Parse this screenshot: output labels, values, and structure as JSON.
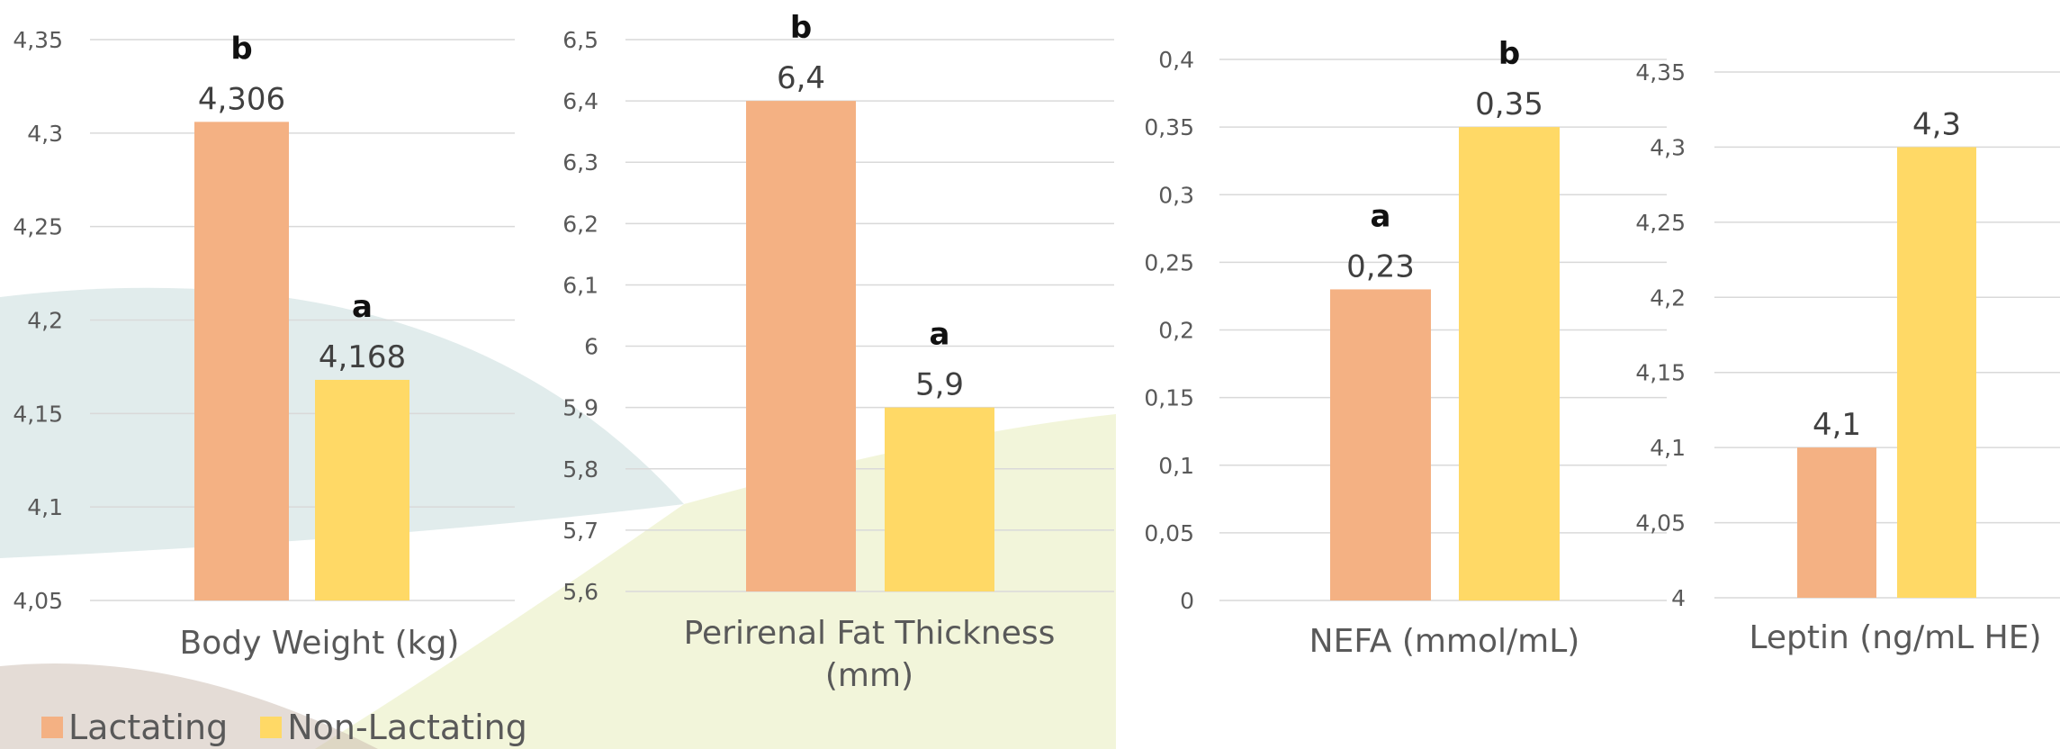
{
  "colors": {
    "lactating": "#F4B183",
    "non_lactating": "#FFD966"
  },
  "legend": {
    "items": [
      {
        "label": "Lactating"
      },
      {
        "label": "Non-Lactating"
      }
    ]
  },
  "chart_data": [
    {
      "type": "bar",
      "xlabel": "Body Weight (kg)",
      "categories": [
        "Body Weight (kg)"
      ],
      "series": [
        {
          "name": "Lactating",
          "values": [
            4.306
          ],
          "data_label": "4,306",
          "letter": "b"
        },
        {
          "name": "Non-Lactating",
          "values": [
            4.168
          ],
          "data_label": "4,168",
          "letter": "a"
        }
      ],
      "ylim": [
        4.05,
        4.35
      ],
      "yticks": [
        4.05,
        4.1,
        4.15,
        4.2,
        4.25,
        4.3,
        4.35
      ],
      "ytick_labels": [
        "4,05",
        "4,1",
        "4,15",
        "4,2",
        "4,25",
        "4,3",
        "4,35"
      ],
      "grid": true
    },
    {
      "type": "bar",
      "xlabel": "Perirenal Fat Thickness (mm)",
      "categories": [
        "Perirenal Fat Thickness (mm)"
      ],
      "series": [
        {
          "name": "Lactating",
          "values": [
            6.4
          ],
          "data_label": "6,4",
          "letter": "b"
        },
        {
          "name": "Non-Lactating",
          "values": [
            5.9
          ],
          "data_label": "5,9",
          "letter": "a"
        }
      ],
      "ylim": [
        5.6,
        6.5
      ],
      "yticks": [
        5.6,
        5.7,
        5.8,
        5.9,
        6.0,
        6.1,
        6.2,
        6.3,
        6.4,
        6.5
      ],
      "ytick_labels": [
        "5,6",
        "5,7",
        "5,8",
        "5,9",
        "6",
        "6,1",
        "6,2",
        "6,3",
        "6,4",
        "6,5"
      ],
      "grid": true
    },
    {
      "type": "bar",
      "xlabel": "NEFA (mmol/mL)",
      "categories": [
        "NEFA (mmol/mL)"
      ],
      "series": [
        {
          "name": "Lactating",
          "values": [
            0.23
          ],
          "data_label": "0,23",
          "letter": "a"
        },
        {
          "name": "Non-Lactating",
          "values": [
            0.35
          ],
          "data_label": "0,35",
          "letter": "b"
        }
      ],
      "ylim": [
        0,
        0.4
      ],
      "yticks": [
        0,
        0.05,
        0.1,
        0.15,
        0.2,
        0.25,
        0.3,
        0.35,
        0.4
      ],
      "ytick_labels": [
        "0",
        "0,05",
        "0,1",
        "0,15",
        "0,2",
        "0,25",
        "0,3",
        "0,35",
        "0,4"
      ],
      "grid": true
    },
    {
      "type": "bar",
      "xlabel": "Leptin (ng/mL HE)",
      "categories": [
        "Leptin (ng/mL HE)"
      ],
      "series": [
        {
          "name": "Lactating",
          "values": [
            4.1
          ],
          "data_label": "4,1",
          "letter": ""
        },
        {
          "name": "Non-Lactating",
          "values": [
            4.3
          ],
          "data_label": "4,3",
          "letter": ""
        }
      ],
      "ylim": [
        4.0,
        4.35
      ],
      "yticks": [
        4.0,
        4.05,
        4.1,
        4.15,
        4.2,
        4.25,
        4.3,
        4.35
      ],
      "ytick_labels": [
        "4",
        "4,05",
        "4,1",
        "4,15",
        "4,2",
        "4,25",
        "4,3",
        "4,35"
      ],
      "grid": true
    }
  ]
}
